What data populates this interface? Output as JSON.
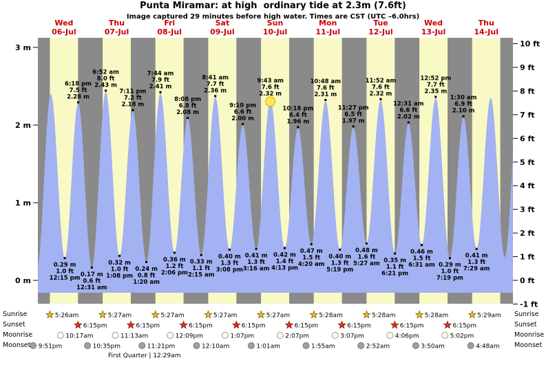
{
  "title": "Punta Miramar: at high  ordinary tide at 2.3m (7.6ft)",
  "subtitle": "Image captured 29 minutes before high water. Times are CST (UTC –6.0hrs)",
  "colors": {
    "day_band": "#f9f9c5",
    "night_band": "#8a8a8a",
    "tide_fill": "#a3b2f2",
    "date_label": "#cc0000",
    "sun_marker": "#ffe850",
    "sun_marker_stroke": "#c8b400"
  },
  "axes": {
    "left_ticks": [
      {
        "label": "3 m",
        "m": 3
      },
      {
        "label": "2 m",
        "m": 2
      },
      {
        "label": "1 m",
        "m": 1
      },
      {
        "label": "0 m",
        "m": 0
      }
    ],
    "right_ticks": [
      {
        "label": "10 ft",
        "ft": 10
      },
      {
        "label": "9 ft",
        "ft": 9
      },
      {
        "label": "8 ft",
        "ft": 8
      },
      {
        "label": "7 ft",
        "ft": 7
      },
      {
        "label": "6 ft",
        "ft": 6
      },
      {
        "label": "5 ft",
        "ft": 5
      },
      {
        "label": "4 ft",
        "ft": 4
      },
      {
        "label": "3 ft",
        "ft": 3
      },
      {
        "label": "2 ft",
        "ft": 2
      },
      {
        "label": "1 ft",
        "ft": 1
      },
      {
        "label": "0 ft",
        "ft": 0
      },
      {
        "label": "-1 ft",
        "ft": -1
      }
    ]
  },
  "days": [
    {
      "weekday": "Wed",
      "date": "06-Jul"
    },
    {
      "weekday": "Thu",
      "date": "07-Jul"
    },
    {
      "weekday": "Fri",
      "date": "08-Jul"
    },
    {
      "weekday": "Sat",
      "date": "09-Jul"
    },
    {
      "weekday": "Sun",
      "date": "10-Jul"
    },
    {
      "weekday": "Mon",
      "date": "11-Jul"
    },
    {
      "weekday": "Tue",
      "date": "12-Jul"
    },
    {
      "weekday": "Wed",
      "date": "13-Jul"
    },
    {
      "weekday": "Thu",
      "date": "14-Jul"
    }
  ],
  "chart_data": {
    "type": "area",
    "title": "Punta Miramar: at high  ordinary tide at 2.3m (7.6ft)",
    "xlabel": "",
    "ylabel_left": "meters",
    "ylabel_right": "feet",
    "ylim_m": [
      -0.3,
      3.12
    ],
    "x_range_hours": [
      0,
      216
    ],
    "x_start": "Wed 06-Jul 00:00",
    "sunrise_hour": 5.45,
    "sunset_hour": 18.25,
    "tide_events": [
      {
        "t": -0.4,
        "h": 0.15,
        "kind": "low",
        "annotated": false,
        "offchart": true
      },
      {
        "t": 5.9,
        "h": 2.4,
        "kind": "high",
        "annotated": false,
        "offchart": true
      },
      {
        "t": 12.25,
        "h": 0.29,
        "kind": "low",
        "annotated": true,
        "lines": [
          "0.29 m",
          "1.0 ft",
          "12:15 pm"
        ]
      },
      {
        "t": 18.3,
        "h": 2.28,
        "kind": "high",
        "annotated": true,
        "lines": [
          "6:18 pm",
          "7.5 ft",
          "2.28 m"
        ]
      },
      {
        "t": 24.52,
        "h": 0.17,
        "kind": "low",
        "annotated": true,
        "lines": [
          "0.17 m",
          "0.6 ft",
          "12:31 am"
        ]
      },
      {
        "t": 30.87,
        "h": 2.43,
        "kind": "high",
        "annotated": true,
        "lines": [
          "6:52 am",
          "8.0 ft",
          "2.43 m"
        ]
      },
      {
        "t": 37.13,
        "h": 0.32,
        "kind": "low",
        "annotated": true,
        "lines": [
          "0.32 m",
          "1.0 ft",
          "1:08 pm"
        ]
      },
      {
        "t": 43.18,
        "h": 2.18,
        "kind": "high",
        "annotated": true,
        "lines": [
          "7:11 pm",
          "7.2 ft",
          "2.18 m"
        ]
      },
      {
        "t": 49.33,
        "h": 0.24,
        "kind": "low",
        "annotated": true,
        "lines": [
          "0.24 m",
          "0.8 ft",
          "1:20 am"
        ]
      },
      {
        "t": 55.73,
        "h": 2.41,
        "kind": "high",
        "annotated": true,
        "lines": [
          "7:44 am",
          "7.9 ft",
          "2.41 m"
        ]
      },
      {
        "t": 62.1,
        "h": 0.36,
        "kind": "low",
        "annotated": true,
        "lines": [
          "0.36 m",
          "1.2 ft",
          "2:06 pm"
        ]
      },
      {
        "t": 68.13,
        "h": 2.08,
        "kind": "high",
        "annotated": true,
        "lines": [
          "8:08 pm",
          "6.8 ft",
          "2.08 m"
        ]
      },
      {
        "t": 74.25,
        "h": 0.33,
        "kind": "low",
        "annotated": true,
        "lines": [
          "0.33 m",
          "1.1 ft",
          "2:15 am"
        ]
      },
      {
        "t": 80.68,
        "h": 2.36,
        "kind": "high",
        "annotated": true,
        "lines": [
          "8:41 am",
          "7.7 ft",
          "2.36 m"
        ]
      },
      {
        "t": 87.13,
        "h": 0.4,
        "kind": "low",
        "annotated": true,
        "lines": [
          "0.40 m",
          "1.3 ft",
          "3:08 pm"
        ]
      },
      {
        "t": 93.17,
        "h": 2.0,
        "kind": "high",
        "annotated": true,
        "lines": [
          "9:10 pm",
          "6.6 ft",
          "2.00 m"
        ]
      },
      {
        "t": 99.27,
        "h": 0.41,
        "kind": "low",
        "annotated": true,
        "lines": [
          "0.41 m",
          "1.3 ft",
          "3:16 am"
        ]
      },
      {
        "t": 105.72,
        "h": 2.32,
        "kind": "high",
        "annotated": true,
        "marker": "sun",
        "lines": [
          "9:43 am",
          "7.6 ft",
          "2.32 m"
        ]
      },
      {
        "t": 112.22,
        "h": 0.42,
        "kind": "low",
        "annotated": true,
        "lines": [
          "0.42 m",
          "1.4 ft",
          "4:13 pm"
        ]
      },
      {
        "t": 118.3,
        "h": 1.96,
        "kind": "high",
        "annotated": true,
        "lines": [
          "10:18 pm",
          "6.4 ft",
          "1.96 m"
        ]
      },
      {
        "t": 124.33,
        "h": 0.47,
        "kind": "low",
        "annotated": true,
        "lines": [
          "0.47 m",
          "1.5 ft",
          "4:20 am"
        ]
      },
      {
        "t": 130.8,
        "h": 2.31,
        "kind": "high",
        "annotated": true,
        "lines": [
          "10:48 am",
          "7.6 ft",
          "2.31 m"
        ]
      },
      {
        "t": 137.32,
        "h": 0.4,
        "kind": "low",
        "annotated": true,
        "lines": [
          "0.40 m",
          "1.3 ft",
          "5:19 pm"
        ]
      },
      {
        "t": 143.45,
        "h": 1.97,
        "kind": "high",
        "annotated": true,
        "lines": [
          "11:27 pm",
          "6.5 ft",
          "1.97 m"
        ]
      },
      {
        "t": 149.45,
        "h": 0.48,
        "kind": "low",
        "annotated": true,
        "lines": [
          "0.48 m",
          "1.6 ft",
          "5:27 am"
        ]
      },
      {
        "t": 155.87,
        "h": 2.32,
        "kind": "high",
        "annotated": true,
        "lines": [
          "11:52 am",
          "7.6 ft",
          "2.32 m"
        ]
      },
      {
        "t": 162.35,
        "h": 0.35,
        "kind": "low",
        "annotated": true,
        "lines": [
          "0.35 m",
          "1.1 ft",
          "6:21 pm"
        ]
      },
      {
        "t": 168.52,
        "h": 2.02,
        "kind": "high",
        "annotated": true,
        "lines": [
          "12:31 am",
          "6.6 ft",
          "2.02 m"
        ]
      },
      {
        "t": 174.52,
        "h": 0.46,
        "kind": "low",
        "annotated": true,
        "lines": [
          "0.46 m",
          "1.5 ft",
          "6:31 am"
        ]
      },
      {
        "t": 180.87,
        "h": 2.35,
        "kind": "high",
        "annotated": true,
        "lines": [
          "12:52 pm",
          "7.7 ft",
          "2.35 m"
        ]
      },
      {
        "t": 187.32,
        "h": 0.29,
        "kind": "low",
        "annotated": true,
        "lines": [
          "0.29 m",
          "1.0 ft",
          "7:19 pm"
        ]
      },
      {
        "t": 193.5,
        "h": 2.1,
        "kind": "high",
        "annotated": true,
        "lines": [
          "1:30 am",
          "6.9 ft",
          "2.10 m"
        ]
      },
      {
        "t": 199.48,
        "h": 0.41,
        "kind": "low",
        "annotated": true,
        "lines": [
          "0.41 m",
          "1.3 ft",
          "7:29 am"
        ]
      },
      {
        "t": 205.9,
        "h": 2.35,
        "kind": "high",
        "annotated": false,
        "offchart": true
      },
      {
        "t": 212.3,
        "h": 0.3,
        "kind": "low",
        "annotated": false,
        "offchart": true
      },
      {
        "t": 218.4,
        "h": 2.3,
        "kind": "high",
        "annotated": false,
        "offchart": true
      }
    ]
  },
  "astro": {
    "rows": [
      {
        "label": "Sunrise",
        "icon": "sunrise-star-icon",
        "shape": "star",
        "fill": "#f2c02e",
        "stroke": "#7a5200",
        "entries": [
          {
            "time": "5:26am",
            "t": 5.43
          },
          {
            "time": "5:27am",
            "t": 29.45
          },
          {
            "time": "5:27am",
            "t": 53.45
          },
          {
            "time": "5:27am",
            "t": 77.45
          },
          {
            "time": "5:27am",
            "t": 101.45
          },
          {
            "time": "5:28am",
            "t": 125.47
          },
          {
            "time": "5:28am",
            "t": 149.47
          },
          {
            "time": "5:28am",
            "t": 173.47
          },
          {
            "time": "5:29am",
            "t": 197.48
          }
        ]
      },
      {
        "label": "Sunset",
        "icon": "sunset-star-icon",
        "shape": "star",
        "fill": "#e03517",
        "stroke": "#7a1000",
        "entries": [
          {
            "time": "6:15pm",
            "t": 18.25
          },
          {
            "time": "6:15pm",
            "t": 42.25
          },
          {
            "time": "6:15pm",
            "t": 66.25
          },
          {
            "time": "6:15pm",
            "t": 90.25
          },
          {
            "time": "6:15pm",
            "t": 114.25
          },
          {
            "time": "6:15pm",
            "t": 138.25
          },
          {
            "time": "6:15pm",
            "t": 162.25
          },
          {
            "time": "6:15pm",
            "t": 186.25
          }
        ]
      },
      {
        "label": "Moonrise",
        "icon": "moonrise-circle-icon",
        "shape": "circle",
        "fill": "#fffde8",
        "stroke": "#999999",
        "entries": [
          {
            "time": "10:17am",
            "t": 10.28
          },
          {
            "time": "11:13am",
            "t": 35.22
          },
          {
            "time": "12:09pm",
            "t": 60.15
          },
          {
            "time": "1:07pm",
            "t": 85.12
          },
          {
            "time": "2:07pm",
            "t": 110.12
          },
          {
            "time": "3:07pm",
            "t": 135.12
          },
          {
            "time": "4:06pm",
            "t": 160.1
          },
          {
            "time": "5:02pm",
            "t": 185.03
          }
        ]
      },
      {
        "label": "Moonset",
        "icon": "moonset-circle-icon",
        "shape": "circle",
        "fill": "#a0a0a0",
        "stroke": "#787878",
        "entries": [
          {
            "time": "9:51pm",
            "t": -2.15
          },
          {
            "time": "10:35pm",
            "t": 22.58
          },
          {
            "time": "11:21pm",
            "t": 47.35
          },
          {
            "time": "12:10am",
            "t": 72.17
          },
          {
            "time": "1:01am",
            "t": 97.02
          },
          {
            "time": "1:55am",
            "t": 121.92
          },
          {
            "time": "2:52am",
            "t": 146.87
          },
          {
            "time": "3:50am",
            "t": 171.83
          },
          {
            "time": "4:48am",
            "t": 196.8
          }
        ]
      }
    ],
    "footnote": "First Quarter | 12:29am"
  }
}
